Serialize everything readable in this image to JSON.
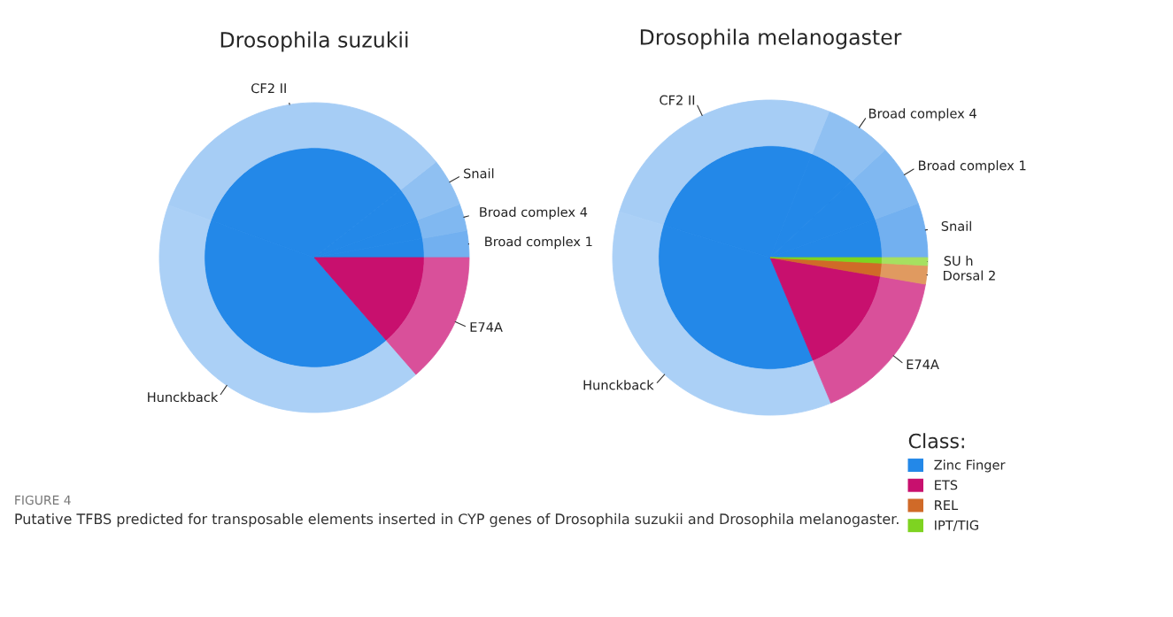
{
  "chart_data": [
    {
      "type": "pie",
      "title": "Drosophila suzukii",
      "legend": false,
      "categories": [
        "Broad complex 1",
        "Broad complex 4",
        "Snail",
        "CF2 II",
        "Hunckback",
        "E74A"
      ],
      "series": [
        {
          "values": [
            2.8,
            2.8,
            5.0,
            33.9,
            41.9,
            13.6
          ],
          "colors": [
            "#72b0f0",
            "#80b8f1",
            "#8fc0f2",
            "#a6cdf5",
            "#abd0f6",
            "#d9509a"
          ]
        },
        {
          "values": [
            2.8,
            2.8,
            5.0,
            33.9,
            41.9,
            13.6
          ],
          "colors": [
            "#2388e8",
            "#2388e8",
            "#2388e8",
            "#2388e8",
            "#2388e8",
            "#c8106e"
          ]
        }
      ],
      "annotations": [
        "FIGURE 4",
        "Putative TFBS predicted for transposable elements inserted in CYP genes of Drosophila suzukii and Drosophila melanogaster."
      ]
    },
    {
      "type": "pie",
      "title": "Drosophila melanogaster",
      "legend_title": "Class:",
      "categories": [
        "Snail",
        "Broad complex 1",
        "Broad complex 4",
        "CF2 II",
        "Hunckback",
        "E74A",
        "Dorsal 2",
        "SU h"
      ],
      "series": [
        {
          "values": [
            5.6,
            6.4,
            6.9,
            26.4,
            36.0,
            16.0,
            1.9,
            0.8
          ],
          "colors": [
            "#72b0f0",
            "#80b8f1",
            "#8fc0f2",
            "#a6cdf5",
            "#abd0f6",
            "#d9509a",
            "#e09a60",
            "#a6e060"
          ]
        },
        {
          "values": [
            5.6,
            6.4,
            6.9,
            26.4,
            36.0,
            16.0,
            1.9,
            0.8
          ],
          "colors": [
            "#2388e8",
            "#2388e8",
            "#2388e8",
            "#2388e8",
            "#2388e8",
            "#c8106e",
            "#d06a28",
            "#7ed321"
          ]
        }
      ],
      "annotations": [
        "Zinc Finger",
        "ETS",
        "REL",
        "IPT/TIG"
      ]
    }
  ]
}
